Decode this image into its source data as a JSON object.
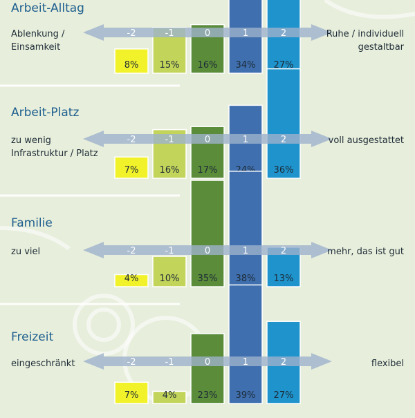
{
  "colors": {
    "background": "#e7eedb",
    "title": "#1f5f8f",
    "arrow": "#9db2cc",
    "scale": [
      "#f2f22a",
      "#c3d45a",
      "#5a8c3a",
      "#3f6fae",
      "#1e93cc"
    ]
  },
  "chart_data": [
    {
      "type": "bar",
      "title": "Arbeit-Alltag",
      "left_label": "Ablenkung / Einsamkeit",
      "right_label": "Ruhe / individuell gestaltbar",
      "categories": [
        "-2",
        "-1",
        "0",
        "1",
        "2"
      ],
      "values": [
        8,
        15,
        16,
        34,
        27
      ],
      "value_labels": [
        "8%",
        "15%",
        "16%",
        "34%",
        "27%"
      ],
      "ylim": [
        0,
        38
      ]
    },
    {
      "type": "bar",
      "title": "Arbeit-Platz",
      "left_label": "zu wenig Infrastruktur / Platz",
      "right_label": "voll ausgestattet",
      "categories": [
        "-2",
        "-1",
        "0",
        "1",
        "2"
      ],
      "values": [
        7,
        16,
        17,
        24,
        36
      ],
      "value_labels": [
        "7%",
        "16%",
        "17%",
        "24%",
        "36%"
      ],
      "ylim": [
        0,
        38
      ]
    },
    {
      "type": "bar",
      "title": "Familie",
      "left_label": "zu viel",
      "right_label": "mehr, das ist gut",
      "categories": [
        "-2",
        "-1",
        "0",
        "1",
        "2"
      ],
      "values": [
        4,
        10,
        35,
        38,
        13
      ],
      "value_labels": [
        "4%",
        "10%",
        "35%",
        "38%",
        "13%"
      ],
      "ylim": [
        0,
        38
      ]
    },
    {
      "type": "bar",
      "title": "Freizeit",
      "left_label": "eingeschränkt",
      "right_label": "flexibel",
      "categories": [
        "-2",
        "-1",
        "0",
        "1",
        "2"
      ],
      "values": [
        7,
        4,
        23,
        39,
        27
      ],
      "value_labels": [
        "7%",
        "4%",
        "23%",
        "39%",
        "27%"
      ],
      "ylim": [
        0,
        38
      ]
    }
  ]
}
